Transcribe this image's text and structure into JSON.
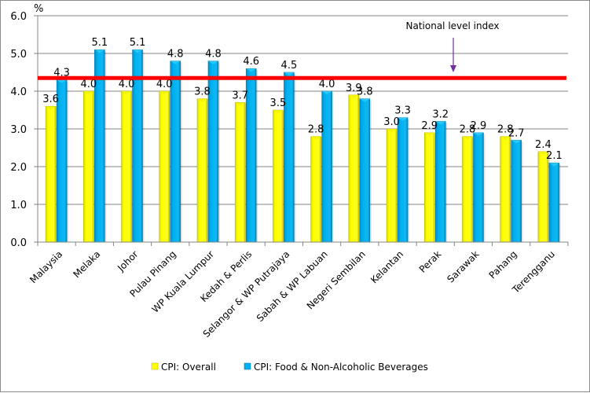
{
  "chart_data": {
    "type": "bar",
    "title": "",
    "xlabel": "",
    "ylabel": "%",
    "ylim": [
      0,
      6
    ],
    "yticks": [
      "0.0",
      "1.0",
      "2.0",
      "3.0",
      "4.0",
      "5.0",
      "6.0"
    ],
    "grid": true,
    "categories": [
      "Malaysia",
      "Melaka",
      "Johor",
      "Pulau Pinang",
      "WP Kuala Lumpur",
      "Kedah & Perlis",
      "Selangor & WP Putrajaya",
      "Sabah & WP Labuan",
      "Negeri Sembilan",
      "Kelantan",
      "Perak",
      "Sarawak",
      "Pahang",
      "Terengganu"
    ],
    "series": [
      {
        "name": "CPI: Overall",
        "color": "#ffff00",
        "values": [
          3.6,
          4.0,
          4.0,
          4.0,
          3.8,
          3.7,
          3.5,
          2.8,
          3.9,
          3.0,
          2.9,
          2.8,
          2.8,
          2.4
        ]
      },
      {
        "name": "CPI: Food & Non-Alcoholic Beverages",
        "color": "#00b0f0",
        "values": [
          4.3,
          5.1,
          5.1,
          4.8,
          4.8,
          4.6,
          4.5,
          4.0,
          3.8,
          3.3,
          3.2,
          2.9,
          2.7,
          2.1
        ]
      }
    ],
    "reference_line": {
      "label": "National level index",
      "value": 4.35,
      "color": "#ff0000"
    },
    "annotation": {
      "text": "National level index",
      "arrow_color": "#7030a0"
    },
    "legend": "bottom"
  }
}
